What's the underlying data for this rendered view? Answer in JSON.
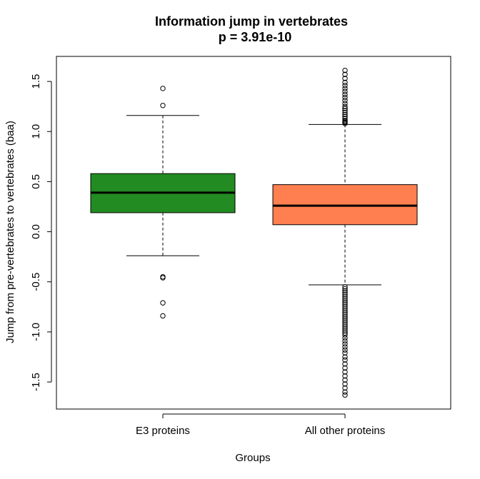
{
  "chart_data": {
    "type": "boxplot",
    "title": "Information jump in vertebrates",
    "subtitle": "p = 3.91e-10",
    "xlabel": "Groups",
    "ylabel": "Jump from pre-vertebrates to vertebrates (baa)",
    "ylim": [
      -1.77,
      1.75
    ],
    "yticks": [
      -1.5,
      -1.0,
      -0.5,
      0.0,
      0.5,
      1.0,
      1.5
    ],
    "ytick_labels": [
      "-1.5",
      "-1.0",
      "-0.5",
      "0.0",
      "0.5",
      "1.0",
      "1.5"
    ],
    "grid": false,
    "categories": [
      "E3 proteins",
      "All other proteins"
    ],
    "boxes": [
      {
        "category": "E3 proteins",
        "color": "#228B22",
        "whisker_low": -0.24,
        "q1": 0.19,
        "median": 0.39,
        "q3": 0.58,
        "whisker_high": 1.16,
        "outliers": [
          1.43,
          1.26,
          -0.45,
          -0.46,
          -0.71,
          -0.84
        ]
      },
      {
        "category": "All other proteins",
        "color": "#FF7F50",
        "whisker_low": -0.53,
        "q1": 0.07,
        "median": 0.26,
        "q3": 0.47,
        "whisker_high": 1.07,
        "outliers": [
          1.61,
          1.57,
          1.53,
          1.49,
          1.46,
          1.43,
          1.4,
          1.37,
          1.34,
          1.31,
          1.28,
          1.25,
          1.23,
          1.21,
          1.19,
          1.17,
          1.15,
          1.13,
          1.11,
          1.1,
          1.09,
          1.08,
          -0.55,
          -0.57,
          -0.59,
          -0.61,
          -0.63,
          -0.65,
          -0.67,
          -0.69,
          -0.71,
          -0.73,
          -0.75,
          -0.77,
          -0.79,
          -0.81,
          -0.83,
          -0.85,
          -0.87,
          -0.89,
          -0.91,
          -0.93,
          -0.95,
          -0.97,
          -0.99,
          -1.01,
          -1.03,
          -1.06,
          -1.09,
          -1.12,
          -1.15,
          -1.18,
          -1.21,
          -1.25,
          -1.28,
          -1.32,
          -1.36,
          -1.4,
          -1.44,
          -1.48,
          -1.52,
          -1.56,
          -1.6,
          -1.63
        ]
      }
    ]
  }
}
